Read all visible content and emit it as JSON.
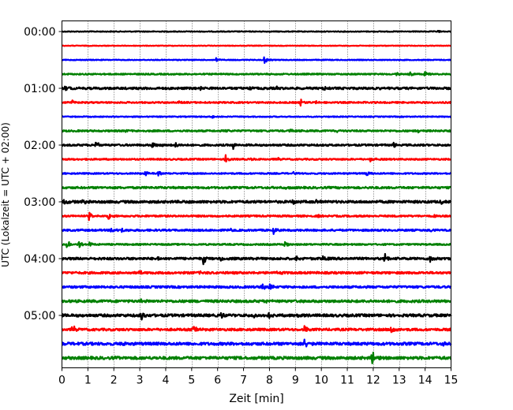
{
  "chart_data": {
    "type": "line",
    "title": "",
    "xlabel": "Zeit  [min]",
    "ylabel": "UTC (Lokalzeit = UTC + 02:00)",
    "xlim": [
      0,
      15
    ],
    "x_ticks": [
      0,
      1,
      2,
      3,
      4,
      5,
      6,
      7,
      8,
      9,
      10,
      11,
      12,
      13,
      14,
      15
    ],
    "x_tick_labels": [
      "0",
      "1",
      "2",
      "3",
      "4",
      "5",
      "6",
      "7",
      "8",
      "9",
      "10",
      "11",
      "12",
      "13",
      "14",
      "15"
    ],
    "y_tick_labels": [
      "00:00",
      "01:00",
      "02:00",
      "03:00",
      "04:00",
      "05:00"
    ],
    "y_tick_rows": [
      0,
      4,
      8,
      12,
      16,
      20
    ],
    "minutes_per_row": 15,
    "vertical_grid": "dotted",
    "color_cycle": [
      "#000000",
      "#ff0000",
      "#0000ff",
      "#008000"
    ],
    "rows": [
      {
        "start": "00:00",
        "color": "#000000",
        "noise": 0.5,
        "events": [
          {
            "t": 14.5,
            "amp": 1.2
          }
        ]
      },
      {
        "start": "00:15",
        "color": "#ff0000",
        "noise": 0.4,
        "events": []
      },
      {
        "start": "00:30",
        "color": "#0000ff",
        "noise": 0.5,
        "events": [
          {
            "t": 5.95,
            "amp": 3
          },
          {
            "t": 7.8,
            "amp": 5
          }
        ]
      },
      {
        "start": "00:45",
        "color": "#008000",
        "noise": 0.8,
        "events": [
          {
            "t": 12.9,
            "amp": 2
          },
          {
            "t": 13.4,
            "amp": 3
          },
          {
            "t": 14.0,
            "amp": 4
          }
        ]
      },
      {
        "start": "01:00",
        "color": "#000000",
        "noise": 1.3,
        "events": [
          {
            "t": 0.1,
            "amp": 3
          },
          {
            "t": 5.3,
            "amp": 2
          },
          {
            "t": 7.2,
            "amp": 2
          },
          {
            "t": 8.3,
            "amp": 2
          },
          {
            "t": 10.1,
            "amp": 2
          },
          {
            "t": 12.2,
            "amp": 2
          }
        ]
      },
      {
        "start": "01:15",
        "color": "#ff0000",
        "noise": 0.9,
        "events": [
          {
            "t": 0.4,
            "amp": 3
          },
          {
            "t": 4.5,
            "amp": 2
          },
          {
            "t": 9.2,
            "amp": 6
          },
          {
            "t": 9.8,
            "amp": 2
          },
          {
            "t": 11.6,
            "amp": 2
          }
        ]
      },
      {
        "start": "01:30",
        "color": "#0000ff",
        "noise": 0.6,
        "events": [
          {
            "t": 5.8,
            "amp": 2
          }
        ]
      },
      {
        "start": "01:45",
        "color": "#008000",
        "noise": 1.0,
        "events": [
          {
            "t": 2.4,
            "amp": 2
          },
          {
            "t": 6.3,
            "amp": 2
          },
          {
            "t": 8.8,
            "amp": 2
          },
          {
            "t": 10.6,
            "amp": 2
          },
          {
            "t": 13.7,
            "amp": 2
          }
        ]
      },
      {
        "start": "02:00",
        "color": "#000000",
        "noise": 1.1,
        "events": [
          {
            "t": 1.3,
            "amp": 5
          },
          {
            "t": 3.5,
            "amp": 5
          },
          {
            "t": 3.85,
            "amp": 4
          },
          {
            "t": 4.35,
            "amp": 5
          },
          {
            "t": 6.6,
            "amp": 5
          },
          {
            "t": 12.8,
            "amp": 4
          }
        ]
      },
      {
        "start": "02:15",
        "color": "#ff0000",
        "noise": 0.9,
        "events": [
          {
            "t": 6.3,
            "amp": 6
          },
          {
            "t": 7.3,
            "amp": 2
          },
          {
            "t": 8.3,
            "amp": 2
          },
          {
            "t": 11.9,
            "amp": 4
          }
        ]
      },
      {
        "start": "02:30",
        "color": "#0000ff",
        "noise": 0.8,
        "events": [
          {
            "t": 3.2,
            "amp": 3
          },
          {
            "t": 3.7,
            "amp": 4
          },
          {
            "t": 8.9,
            "amp": 2
          },
          {
            "t": 11.75,
            "amp": 5
          }
        ]
      },
      {
        "start": "02:45",
        "color": "#008000",
        "noise": 1.2,
        "events": [
          {
            "t": 8.6,
            "amp": 2
          },
          {
            "t": 11.6,
            "amp": 2
          }
        ]
      },
      {
        "start": "03:00",
        "color": "#000000",
        "noise": 1.5,
        "events": [
          {
            "t": 0.1,
            "amp": 6
          },
          {
            "t": 0.8,
            "amp": 3
          },
          {
            "t": 4.6,
            "amp": 2
          },
          {
            "t": 8.9,
            "amp": 3
          },
          {
            "t": 9.8,
            "amp": 3
          },
          {
            "t": 14.6,
            "amp": 3
          }
        ]
      },
      {
        "start": "03:15",
        "color": "#ff0000",
        "noise": 1.0,
        "events": [
          {
            "t": 1.05,
            "amp": 6
          },
          {
            "t": 1.8,
            "amp": 5
          },
          {
            "t": 6.1,
            "amp": 2
          },
          {
            "t": 9.9,
            "amp": 2
          },
          {
            "t": 14.3,
            "amp": 2
          }
        ]
      },
      {
        "start": "03:30",
        "color": "#0000ff",
        "noise": 1.1,
        "events": [
          {
            "t": 1.9,
            "amp": 5
          },
          {
            "t": 2.3,
            "amp": 3
          },
          {
            "t": 6.4,
            "amp": 4
          },
          {
            "t": 8.15,
            "amp": 5
          },
          {
            "t": 14.2,
            "amp": 2
          }
        ]
      },
      {
        "start": "03:45",
        "color": "#008000",
        "noise": 0.9,
        "events": [
          {
            "t": 0.2,
            "amp": 6
          },
          {
            "t": 0.65,
            "amp": 4
          },
          {
            "t": 1.05,
            "amp": 4
          },
          {
            "t": 8.6,
            "amp": 5
          }
        ]
      },
      {
        "start": "04:00",
        "color": "#000000",
        "noise": 1.4,
        "events": [
          {
            "t": 3.7,
            "amp": 3
          },
          {
            "t": 5.45,
            "amp": 7
          },
          {
            "t": 6.1,
            "amp": 3
          },
          {
            "t": 9.05,
            "amp": 5
          },
          {
            "t": 10.05,
            "amp": 6
          },
          {
            "t": 12.45,
            "amp": 6
          },
          {
            "t": 14.2,
            "amp": 5
          }
        ]
      },
      {
        "start": "04:15",
        "color": "#ff0000",
        "noise": 1.3,
        "events": [
          {
            "t": 3.0,
            "amp": 2
          },
          {
            "t": 5.3,
            "amp": 2
          },
          {
            "t": 8.3,
            "amp": 2
          }
        ]
      },
      {
        "start": "04:30",
        "color": "#0000ff",
        "noise": 1.3,
        "events": [
          {
            "t": 7.7,
            "amp": 7
          },
          {
            "t": 8.0,
            "amp": 7
          },
          {
            "t": 9.3,
            "amp": 2
          }
        ]
      },
      {
        "start": "04:45",
        "color": "#008000",
        "noise": 1.5,
        "events": [
          {
            "t": 3.0,
            "amp": 2
          },
          {
            "t": 7.9,
            "amp": 2
          },
          {
            "t": 9.2,
            "amp": 2
          }
        ]
      },
      {
        "start": "05:00",
        "color": "#000000",
        "noise": 1.6,
        "events": [
          {
            "t": 3.05,
            "amp": 6
          },
          {
            "t": 6.15,
            "amp": 7
          },
          {
            "t": 7.4,
            "amp": 6
          },
          {
            "t": 7.95,
            "amp": 7
          },
          {
            "t": 9.1,
            "amp": 3
          }
        ]
      },
      {
        "start": "05:15",
        "color": "#ff0000",
        "noise": 1.4,
        "events": [
          {
            "t": 0.4,
            "amp": 7
          },
          {
            "t": 5.05,
            "amp": 7
          },
          {
            "t": 5.45,
            "amp": 7
          },
          {
            "t": 9.35,
            "amp": 6
          },
          {
            "t": 12.7,
            "amp": 6
          }
        ]
      },
      {
        "start": "05:30",
        "color": "#0000ff",
        "noise": 1.7,
        "events": [
          {
            "t": 2.3,
            "amp": 3
          },
          {
            "t": 9.35,
            "amp": 6
          },
          {
            "t": 14.7,
            "amp": 3
          }
        ]
      },
      {
        "start": "05:45",
        "color": "#008000",
        "noise": 1.7,
        "events": [
          {
            "t": 2.1,
            "amp": 3
          },
          {
            "t": 11.95,
            "amp": 10
          }
        ]
      }
    ]
  }
}
